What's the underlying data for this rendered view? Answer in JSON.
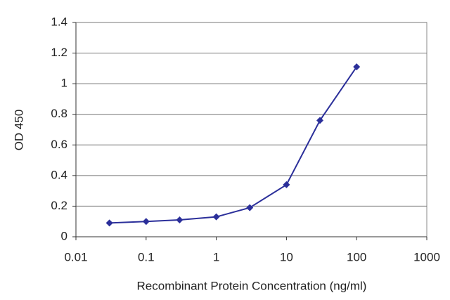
{
  "chart_data": {
    "type": "line",
    "x_label": "Recombinant Protein Concentration (ng/ml)",
    "y_label": "OD 450",
    "x": [
      0.03,
      0.1,
      0.3,
      1,
      3,
      10,
      30,
      100
    ],
    "values": [
      0.09,
      0.1,
      0.11,
      0.13,
      0.19,
      0.34,
      0.76,
      1.11
    ],
    "color": "#2b2f9a",
    "xscale": "log",
    "xlim": [
      0.01,
      1000
    ],
    "xticks": [
      0.01,
      0.1,
      1,
      10,
      100,
      1000
    ],
    "ylim": [
      0,
      1.4
    ],
    "yticks": [
      0,
      0.2,
      0.4,
      0.6,
      0.8,
      1,
      1.2,
      1.4
    ],
    "grid": true
  }
}
